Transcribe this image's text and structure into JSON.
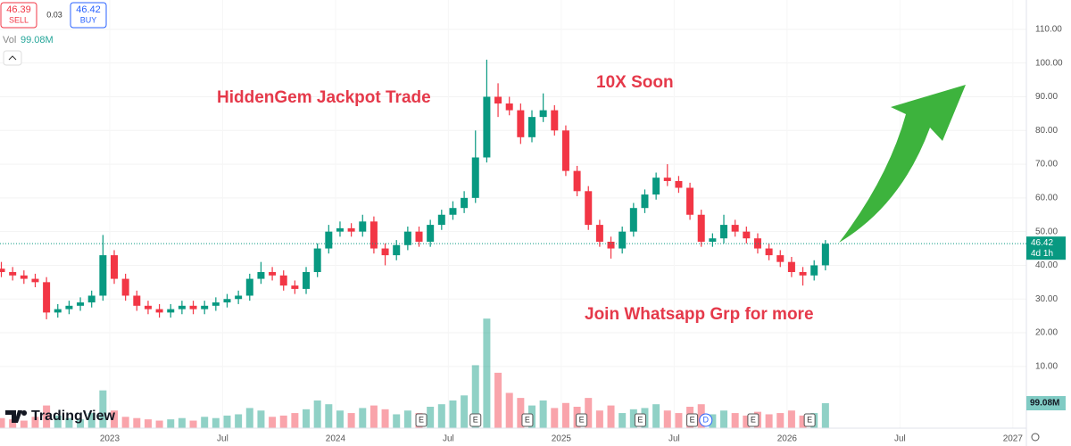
{
  "chart_data": {
    "type": "candlestick",
    "header": {
      "sell_price": 46.39,
      "sell_label": "SELL",
      "spread": 0.03,
      "buy_price": 46.42,
      "buy_label": "BUY",
      "vol_title": "Vol",
      "volume_label": "99.08M"
    },
    "annotations": [
      "HiddenGem Jackpot Trade",
      "10X Soon",
      "Join Whatsapp Grp for more"
    ],
    "branding": "TradingView",
    "last_price": 46.42,
    "countdown": "4d 1h",
    "up_color": "#089981",
    "down_color": "#f23645",
    "x": [
      2022.52,
      2022.57,
      2022.62,
      2022.67,
      2022.72,
      2022.77,
      2022.82,
      2022.87,
      2022.92,
      2022.97,
      2023.02,
      2023.07,
      2023.12,
      2023.17,
      2023.22,
      2023.27,
      2023.32,
      2023.37,
      2023.42,
      2023.47,
      2023.52,
      2023.57,
      2023.62,
      2023.67,
      2023.72,
      2023.77,
      2023.82,
      2023.87,
      2023.92,
      2023.97,
      2024.02,
      2024.07,
      2024.12,
      2024.17,
      2024.22,
      2024.27,
      2024.32,
      2024.37,
      2024.42,
      2024.47,
      2024.52,
      2024.57,
      2024.62,
      2024.67,
      2024.72,
      2024.77,
      2024.82,
      2024.87,
      2024.92,
      2024.97,
      2025.02,
      2025.07,
      2025.12,
      2025.17,
      2025.22,
      2025.27,
      2025.32,
      2025.37,
      2025.42,
      2025.47,
      2025.52,
      2025.57,
      2025.62,
      2025.67,
      2025.72,
      2025.77,
      2025.82,
      2025.87,
      2025.92,
      2025.97,
      2026.02,
      2026.07,
      2026.12,
      2026.17
    ],
    "open": [
      39,
      38,
      37,
      36,
      35,
      26,
      27,
      28,
      29,
      31,
      43,
      36,
      31,
      28,
      27,
      26,
      27,
      28,
      27,
      28,
      29,
      30,
      31,
      36,
      38,
      37,
      34,
      33,
      38,
      45,
      50,
      51,
      50,
      53,
      45,
      43,
      46,
      50,
      47,
      52,
      55,
      57,
      60,
      72,
      90,
      88,
      86,
      78,
      84,
      86,
      80,
      68,
      62,
      52,
      47,
      45,
      50,
      57,
      61,
      66,
      65,
      63,
      55,
      47,
      48,
      52,
      50,
      48,
      45,
      43,
      41,
      38,
      37,
      40
    ],
    "high": [
      41,
      39.5,
      38.5,
      37.5,
      36.5,
      28.5,
      29.5,
      30.5,
      32.5,
      49,
      44.5,
      37.5,
      32.5,
      29.5,
      28.5,
      28.5,
      29.5,
      29.5,
      29.5,
      30.5,
      31.5,
      32.5,
      37.5,
      41,
      39.5,
      38.5,
      35.5,
      39.5,
      46.5,
      52,
      53,
      52.5,
      55,
      54.5,
      46.5,
      47.5,
      51.5,
      51.5,
      53.5,
      56.5,
      59,
      62,
      80,
      101,
      94,
      90,
      88,
      86,
      91,
      87.5,
      81.5,
      69.5,
      63.5,
      53.5,
      48.5,
      51.5,
      58.5,
      62.5,
      67.5,
      70,
      66.5,
      64.5,
      56.5,
      49.5,
      55,
      53.5,
      51.5,
      49.5,
      46.5,
      44.5,
      42.5,
      39.5,
      41.5,
      47.5
    ],
    "low": [
      36.5,
      35.5,
      34.5,
      33.5,
      24,
      24.5,
      25.5,
      26.5,
      27.5,
      29.5,
      34.5,
      29.5,
      26.5,
      25.5,
      24.5,
      24.5,
      25.5,
      25.5,
      25.5,
      26.5,
      27.5,
      28.5,
      29.5,
      34.5,
      35.5,
      32.5,
      31.5,
      31.5,
      36.5,
      43.5,
      48.5,
      48.5,
      48.5,
      43.5,
      40,
      41.5,
      44.5,
      45.5,
      45.5,
      50.5,
      53.5,
      55.5,
      58.5,
      70.5,
      84,
      84.5,
      76,
      76.5,
      82.5,
      78.5,
      66.5,
      60.5,
      50.5,
      45.5,
      42,
      43.5,
      48.5,
      55.5,
      59.5,
      63.5,
      61.5,
      53.5,
      45.5,
      45.5,
      46.5,
      48.5,
      46.5,
      43.5,
      41.5,
      39.5,
      36.5,
      34,
      35.5,
      38.5
    ],
    "close": [
      38,
      37,
      36,
      35,
      26,
      27,
      28,
      29,
      31,
      43,
      36,
      31,
      28,
      27,
      26,
      27,
      28,
      27,
      28,
      29,
      30,
      31,
      36,
      38,
      37,
      34,
      33,
      38,
      45,
      50,
      51,
      50,
      53,
      45,
      43,
      46,
      50,
      47,
      52,
      55,
      57,
      60,
      72,
      90,
      88,
      86,
      78,
      84,
      86,
      80,
      68,
      62,
      52,
      47,
      45,
      50,
      57,
      61,
      66,
      65,
      63,
      55,
      47,
      48,
      52,
      50,
      48,
      45,
      43,
      41,
      38,
      37,
      40,
      46.42
    ],
    "volume": [
      40,
      35,
      30,
      45,
      90,
      50,
      40,
      35,
      60,
      150,
      70,
      45,
      40,
      35,
      30,
      35,
      40,
      30,
      45,
      40,
      50,
      55,
      80,
      70,
      45,
      50,
      60,
      75,
      110,
      95,
      70,
      60,
      80,
      90,
      75,
      55,
      70,
      60,
      85,
      95,
      110,
      130,
      250,
      435,
      220,
      140,
      120,
      90,
      110,
      80,
      100,
      85,
      120,
      70,
      90,
      60,
      75,
      80,
      95,
      70,
      60,
      85,
      95,
      55,
      70,
      60,
      50,
      65,
      55,
      60,
      70,
      50,
      60,
      99.08
    ],
    "xlim": [
      2022.514,
      2027.06
    ],
    "ylim": [
      -8.3,
      118.7
    ],
    "y2lim": [
      0,
      1700
    ],
    "xticks": [
      2023,
      {
        "value": 2023.5,
        "label": "Jul"
      },
      2024,
      {
        "value": 2024.5,
        "label": "Jul"
      },
      2025,
      {
        "value": 2025.5,
        "label": "Jul"
      },
      2026,
      {
        "value": 2026.5,
        "label": "Jul"
      },
      2027
    ],
    "yticks": [
      {
        "value": 10,
        "label": "10.00"
      },
      {
        "value": 20,
        "label": "20.00"
      },
      {
        "value": 30,
        "label": "30.00"
      },
      {
        "value": 40,
        "label": "40.00"
      },
      {
        "value": 50,
        "label": "50.00"
      },
      {
        "value": 60,
        "label": "60.00"
      },
      {
        "value": 70,
        "label": "70.00"
      },
      {
        "value": 80,
        "label": "80.00"
      },
      {
        "value": 90,
        "label": "90.00"
      },
      {
        "value": 100,
        "label": "100.00"
      },
      {
        "value": 110,
        "label": "110.00"
      }
    ],
    "events": [
      {
        "x": 2024.38,
        "label": "E"
      },
      {
        "x": 2024.62,
        "label": "E"
      },
      {
        "x": 2024.85,
        "label": "E"
      },
      {
        "x": 2025.09,
        "label": "E"
      },
      {
        "x": 2025.35,
        "label": "E"
      },
      {
        "x": 2025.58,
        "label": "E"
      },
      {
        "x": 2025.64,
        "label": "D"
      },
      {
        "x": 2025.85,
        "label": "E"
      },
      {
        "x": 2026.1,
        "label": "E"
      }
    ]
  }
}
